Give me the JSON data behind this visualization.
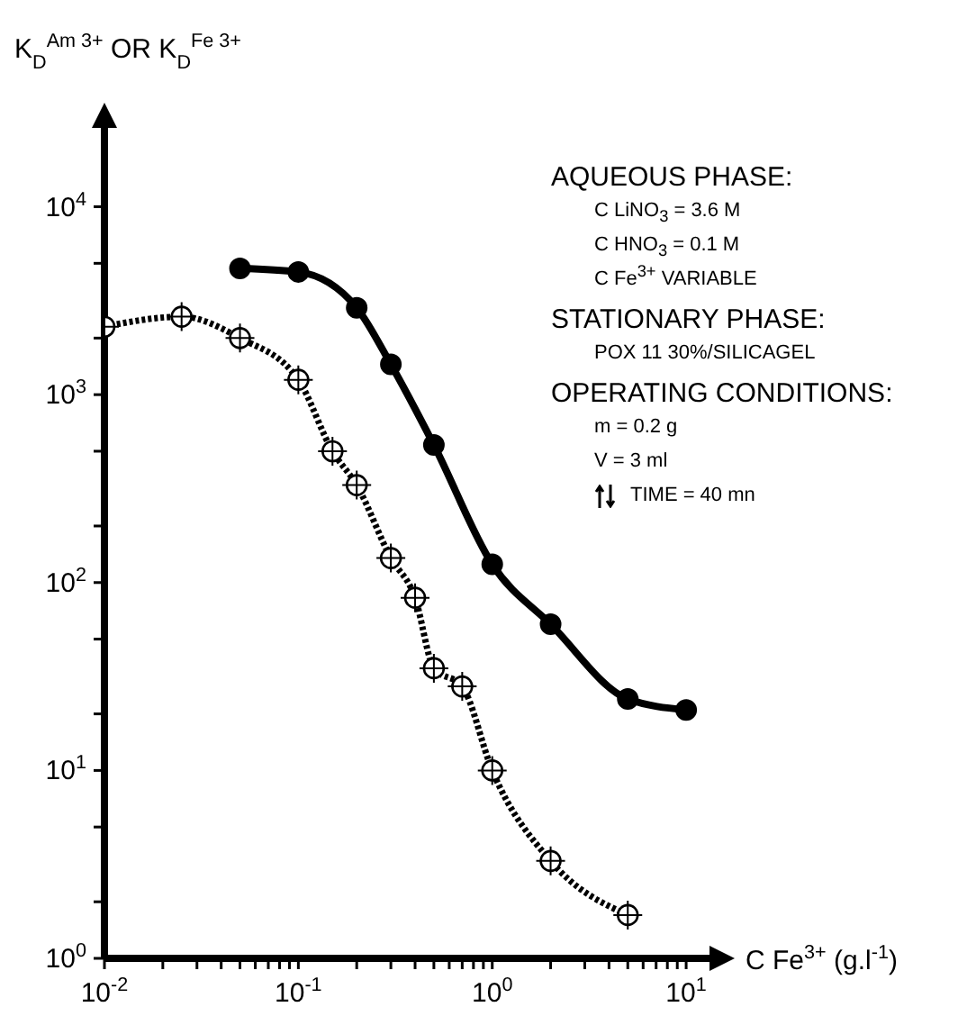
{
  "chart_data": {
    "type": "line",
    "ylabel": "K$_{D}$$^{Am 3+}$ OR K$_{D}$$^{Fe 3+}$",
    "xlabel": "C Fe$^{3+}$ (g.l$^{-1}$)",
    "log": "xy",
    "xlim": [
      0.01,
      15
    ],
    "ylim": [
      1,
      30000
    ],
    "xticks": [
      {
        "value": 0.01,
        "label": "10$^{-2}$"
      },
      {
        "value": 0.02,
        "label": null
      },
      {
        "value": 0.03,
        "label": null
      },
      {
        "value": 0.04,
        "label": null
      },
      {
        "value": 0.05,
        "label": null
      },
      {
        "value": 0.06,
        "label": null
      },
      {
        "value": 0.07,
        "label": null
      },
      {
        "value": 0.08,
        "label": null
      },
      {
        "value": 0.09,
        "label": null
      },
      {
        "value": 0.1,
        "label": "10$^{-1}$"
      },
      {
        "value": 0.2,
        "label": null
      },
      {
        "value": 0.3,
        "label": null
      },
      {
        "value": 0.4,
        "label": null
      },
      {
        "value": 0.5,
        "label": null
      },
      {
        "value": 0.6,
        "label": null
      },
      {
        "value": 0.7,
        "label": null
      },
      {
        "value": 0.8,
        "label": null
      },
      {
        "value": 0.9,
        "label": null
      },
      {
        "value": 1,
        "label": "10$^{0}$"
      },
      {
        "value": 2,
        "label": null
      },
      {
        "value": 3,
        "label": null
      },
      {
        "value": 4,
        "label": null
      },
      {
        "value": 5,
        "label": null
      },
      {
        "value": 6,
        "label": null
      },
      {
        "value": 7,
        "label": null
      },
      {
        "value": 8,
        "label": null
      },
      {
        "value": 9,
        "label": null
      },
      {
        "value": 10,
        "label": "10$^{1}$"
      }
    ],
    "yticks": [
      {
        "value": 1,
        "label": "10$^{0}$"
      },
      {
        "value": 2,
        "label": null
      },
      {
        "value": 5,
        "label": null
      },
      {
        "value": 10,
        "label": "10$^{1}$"
      },
      {
        "value": 20,
        "label": null
      },
      {
        "value": 50,
        "label": null
      },
      {
        "value": 100,
        "label": "10$^{2}$"
      },
      {
        "value": 200,
        "label": null
      },
      {
        "value": 500,
        "label": null
      },
      {
        "value": 1000,
        "label": "10$^{3}$"
      },
      {
        "value": 2000,
        "label": null
      },
      {
        "value": 5000,
        "label": null
      },
      {
        "value": 10000,
        "label": "10$^{4}$"
      }
    ],
    "series": [
      {
        "color": "#000000",
        "marker": "circle",
        "line_style": "solid",
        "x": [
          0.05,
          0.1,
          0.2,
          0.3,
          0.5,
          1,
          2,
          5,
          10
        ],
        "values": [
          4700,
          4500,
          2900,
          1450,
          540,
          125,
          60,
          24,
          21
        ]
      },
      {
        "color": "#000000",
        "marker": "circle",
        "line_style": "dotted",
        "x": [
          0.01,
          0.025,
          0.05,
          0.1,
          0.15,
          0.2,
          0.3,
          0.4,
          0.5,
          0.7,
          1,
          2,
          5
        ],
        "values": [
          2300,
          2600,
          2000,
          1200,
          500,
          330,
          135,
          83,
          35,
          28,
          10,
          3.3,
          1.7
        ]
      }
    ],
    "annotations": [
      "AQUEOUS PHASE:",
      "C LiNO$_{3}$ = 3.6 M",
      "C HNO$_{3}$ = 0.1 M",
      "C Fe$^{3+}$ VARIABLE",
      "STATIONARY PHASE:",
      "POX 11 30%/SILICAGEL",
      "OPERATING CONDITIONS:",
      "m = 0.2 g",
      "V = 3 ml",
      "TIME = 40 mn"
    ]
  }
}
